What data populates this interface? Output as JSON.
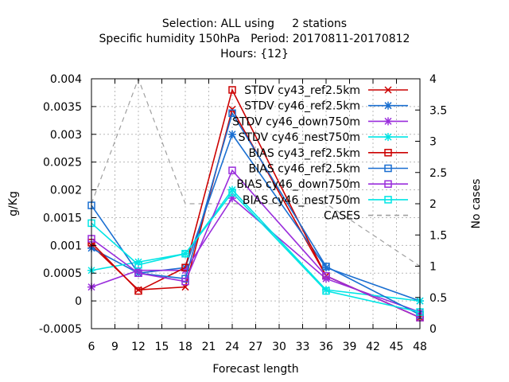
{
  "chart_data": {
    "type": "line",
    "title_lines": [
      "Selection: ALL using     2 stations",
      "Specific humidity 150hPa   Period: 20170811-20170812",
      "Hours: {12}"
    ],
    "xlabel": "Forecast length",
    "ylabel": "g/Kg",
    "y2label": "No cases",
    "xlim": [
      6,
      48
    ],
    "ylim": [
      -0.0005,
      0.004
    ],
    "y2lim": [
      0,
      4
    ],
    "xticks": [
      "6",
      "9",
      "12",
      "15",
      "18",
      "21",
      "24",
      "27",
      "30",
      "33",
      "36",
      "39",
      "42",
      "45",
      "48"
    ],
    "xtick_values": [
      6,
      9,
      12,
      15,
      18,
      21,
      24,
      27,
      30,
      33,
      36,
      39,
      42,
      45,
      48
    ],
    "yticks": [
      "-0.0005",
      "0",
      "0.0005",
      "0.001",
      "0.0015",
      "0.002",
      "0.0025",
      "0.003",
      "0.0035",
      "0.004"
    ],
    "ytick_values": [
      -0.0005,
      0,
      0.0005,
      0.001,
      0.0015,
      0.002,
      0.0025,
      0.003,
      0.0035,
      0.004
    ],
    "y2ticks": [
      "0",
      "0.5",
      "1",
      "1.5",
      "2",
      "2.5",
      "3",
      "3.5",
      "4"
    ],
    "y2tick_values": [
      0,
      0.5,
      1,
      1.5,
      2,
      2.5,
      3,
      3.5,
      4
    ],
    "grid": true,
    "legend_position": "top-right",
    "x": [
      6,
      12,
      18,
      24,
      36,
      48
    ],
    "series": [
      {
        "name": "STDV cy43_ref2.5km",
        "color": "#cc0000",
        "marker": "x",
        "values": [
          0.001,
          0.0002,
          0.00025,
          0.00345,
          0.00045,
          -0.0003
        ]
      },
      {
        "name": "STDV cy46_ref2.5km",
        "color": "#1a6fd1",
        "marker": "star",
        "values": [
          0.00095,
          0.0005,
          0.0006,
          0.003,
          0.0006,
          0.0
        ]
      },
      {
        "name": "STDV cy46_down750m",
        "color": "#9a2edc",
        "marker": "star",
        "values": [
          0.00025,
          0.00055,
          0.00055,
          0.00185,
          0.0004,
          -0.0002
        ]
      },
      {
        "name": "STDV cy46_nest750m",
        "color": "#00e5e5",
        "marker": "star",
        "values": [
          0.00055,
          0.0007,
          0.00085,
          0.002,
          0.0002,
          0.0
        ]
      },
      {
        "name": "BIAS cy43_ref2.5km",
        "color": "#cc0000",
        "marker": "square",
        "values": [
          0.00105,
          0.00018,
          0.0006,
          0.0038,
          0.00045,
          -0.0003
        ]
      },
      {
        "name": "BIAS cy46_ref2.5km",
        "color": "#1a6fd1",
        "marker": "square",
        "values": [
          0.00172,
          0.0005,
          0.0004,
          0.00338,
          0.00062,
          -0.00025
        ]
      },
      {
        "name": "BIAS cy46_down750m",
        "color": "#9a2edc",
        "marker": "square",
        "values": [
          0.00112,
          0.0005,
          0.00035,
          0.00235,
          0.00045,
          -0.0003
        ]
      },
      {
        "name": "BIAS cy46_nest750m",
        "color": "#00e5e5",
        "marker": "square",
        "values": [
          0.0014,
          0.00065,
          0.00085,
          0.00195,
          0.00018,
          -0.0002
        ]
      }
    ],
    "cases": {
      "name": "CASES",
      "color": "#a0a0a0",
      "axis": "y2",
      "values": [
        2,
        4,
        2,
        2,
        2,
        1
      ]
    }
  }
}
